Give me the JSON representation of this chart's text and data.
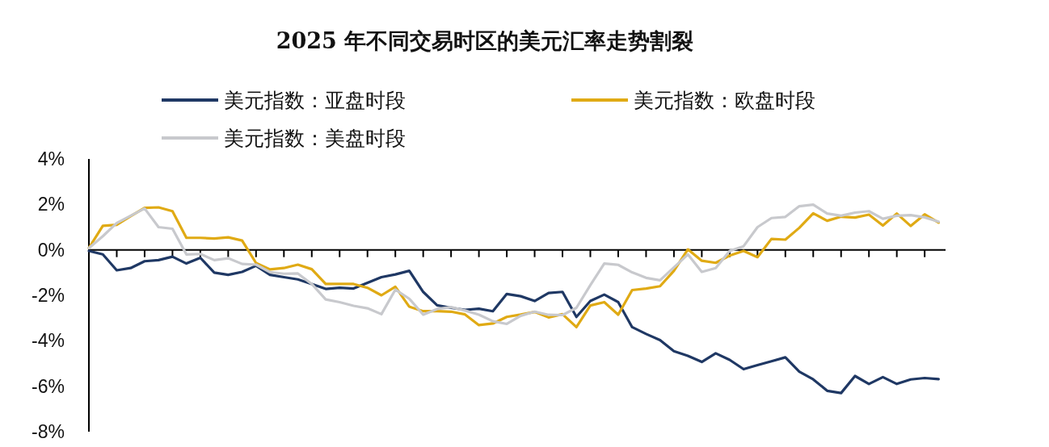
{
  "chart_data": {
    "type": "line",
    "title": "2025 年不同交易时区的美元汇率走势割裂",
    "legend": "top",
    "tick_labels": "y",
    "categories": [
      null,
      null,
      null,
      null,
      null,
      null,
      null,
      null,
      null,
      null,
      null,
      null,
      null,
      null,
      null,
      null,
      null,
      null,
      null,
      null,
      null,
      null,
      null,
      null,
      null,
      null,
      null,
      null,
      null,
      null,
      null,
      null,
      null,
      null,
      null,
      null,
      null,
      null,
      null,
      null,
      null,
      null,
      null,
      null,
      null,
      null,
      null,
      null,
      null,
      null,
      null,
      null,
      null,
      null,
      null,
      null,
      null,
      null,
      null,
      null,
      null,
      null
    ],
    "ylim": [
      -8,
      4
    ],
    "yticks": [
      {
        "value": 4,
        "label": "4%"
      },
      {
        "value": 2,
        "label": "2%"
      },
      {
        "value": 0,
        "label": "0%"
      },
      {
        "value": -2,
        "label": "-2%"
      },
      {
        "value": -4,
        "label": "-4%"
      },
      {
        "value": -6,
        "label": "-6%"
      },
      {
        "value": -8,
        "label": "-8%"
      }
    ],
    "series": [
      {
        "name": "美元指数：亚盘时段",
        "color": "#1f3864",
        "values": [
          -0.05,
          -0.2,
          -0.9,
          -0.8,
          -0.5,
          -0.45,
          -0.3,
          -0.6,
          -0.35,
          -1.0,
          -1.1,
          -0.97,
          -0.7,
          -1.1,
          -1.2,
          -1.3,
          -1.5,
          -1.72,
          -1.67,
          -1.7,
          -1.45,
          -1.2,
          -1.08,
          -0.92,
          -1.85,
          -2.44,
          -2.55,
          -2.64,
          -2.59,
          -2.7,
          -1.94,
          -2.04,
          -2.25,
          -1.9,
          -1.85,
          -2.95,
          -2.25,
          -1.97,
          -2.3,
          -3.4,
          -3.7,
          -3.97,
          -4.46,
          -4.66,
          -4.93,
          -4.55,
          -4.84,
          -5.25,
          -5.07,
          -4.9,
          -4.73,
          -5.36,
          -5.7,
          -6.2,
          -6.3,
          -5.55,
          -5.9,
          -5.6,
          -5.9,
          -5.7,
          -5.64,
          -5.69
        ]
      },
      {
        "name": "美元指数：欧盘时段",
        "color": "#e0aa14",
        "values": [
          0.08,
          1.06,
          1.1,
          1.48,
          1.85,
          1.87,
          1.7,
          0.53,
          0.53,
          0.5,
          0.55,
          0.41,
          -0.58,
          -0.86,
          -0.8,
          -0.65,
          -0.85,
          -1.5,
          -1.5,
          -1.5,
          -1.67,
          -2.0,
          -1.62,
          -2.5,
          -2.7,
          -2.7,
          -2.72,
          -2.84,
          -3.31,
          -3.24,
          -2.95,
          -2.85,
          -2.73,
          -2.97,
          -2.83,
          -3.4,
          -2.45,
          -2.3,
          -2.85,
          -1.77,
          -1.7,
          -1.6,
          -0.92,
          0.02,
          -0.48,
          -0.57,
          -0.25,
          -0.05,
          -0.32,
          0.48,
          0.45,
          0.97,
          1.61,
          1.28,
          1.46,
          1.42,
          1.55,
          1.07,
          1.6,
          1.05,
          1.56,
          1.2
        ]
      },
      {
        "name": "美元指数：美盘时段",
        "color": "#c8c9cd",
        "values": [
          0.08,
          0.6,
          1.18,
          1.5,
          1.82,
          1.0,
          0.93,
          -0.2,
          -0.18,
          -0.45,
          -0.37,
          -0.62,
          -0.65,
          -0.98,
          -1.05,
          -1.04,
          -1.5,
          -2.18,
          -2.3,
          -2.46,
          -2.57,
          -2.83,
          -1.75,
          -2.15,
          -2.85,
          -2.6,
          -2.52,
          -2.67,
          -2.85,
          -3.14,
          -3.26,
          -2.9,
          -2.72,
          -2.86,
          -2.87,
          -2.55,
          -1.55,
          -0.6,
          -0.66,
          -0.99,
          -1.23,
          -1.34,
          -0.77,
          -0.2,
          -0.97,
          -0.8,
          -0.05,
          0.16,
          1.0,
          1.4,
          1.45,
          1.92,
          1.99,
          1.6,
          1.5,
          1.64,
          1.7,
          1.37,
          1.5,
          1.53,
          1.43,
          1.24
        ]
      }
    ]
  }
}
